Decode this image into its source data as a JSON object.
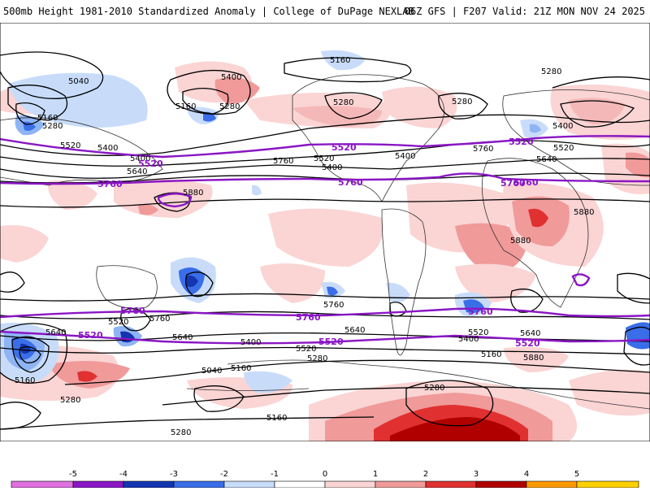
{
  "header": {
    "title": "500mb Height 1981-2010 Standardized Anomaly | College of DuPage NEXLAB",
    "run_info": "06Z GFS | F207 Valid: 21Z MON NOV 24 2025"
  },
  "contour_labels": [
    {
      "id": "l5160a",
      "text": "5160"
    },
    {
      "id": "l5040a",
      "text": "5040"
    },
    {
      "id": "l5400a",
      "text": "5400"
    },
    {
      "id": "l5160b",
      "text": "5160"
    },
    {
      "id": "l5280a",
      "text": "5280"
    },
    {
      "id": "l5160c",
      "text": "5160"
    },
    {
      "id": "l5280b",
      "text": "5280"
    },
    {
      "id": "l5400b",
      "text": "5400"
    },
    {
      "id": "l5280c",
      "text": "5280"
    },
    {
      "id": "l5280d",
      "text": "5280"
    },
    {
      "id": "l5280e",
      "text": "5280"
    },
    {
      "id": "l5400c",
      "text": "5400"
    },
    {
      "id": "l5520a",
      "text": "5520"
    },
    {
      "id": "l5400d",
      "text": "5400"
    },
    {
      "id": "l5640a",
      "text": "5640"
    },
    {
      "id": "l5760a",
      "text": "5760"
    },
    {
      "id": "l5520b",
      "text": "5520"
    },
    {
      "id": "l5520c",
      "text": "5520"
    },
    {
      "id": "l5400e",
      "text": "5400"
    },
    {
      "id": "l5760b",
      "text": "5760"
    },
    {
      "id": "l5400f",
      "text": "5400"
    },
    {
      "id": "l5640b",
      "text": "5640"
    },
    {
      "id": "l5880a",
      "text": "5880"
    },
    {
      "id": "l5880b",
      "text": "5880"
    },
    {
      "id": "l5880c",
      "text": "5880"
    },
    {
      "id": "l5520d",
      "text": "5520"
    },
    {
      "id": "l5760c",
      "text": "5760"
    },
    {
      "id": "l5640c",
      "text": "5640"
    },
    {
      "id": "l5640d",
      "text": "5640"
    },
    {
      "id": "l5400g",
      "text": "5400"
    },
    {
      "id": "l5520e",
      "text": "5520"
    },
    {
      "id": "l5280f",
      "text": "5280"
    },
    {
      "id": "l5160d",
      "text": "5160"
    },
    {
      "id": "l5040b",
      "text": "5040"
    },
    {
      "id": "l5160e",
      "text": "5160"
    },
    {
      "id": "l5280g",
      "text": "5280"
    },
    {
      "id": "l5160f",
      "text": "5160"
    },
    {
      "id": "l5280h",
      "text": "5280"
    },
    {
      "id": "l5760d",
      "text": "5760"
    },
    {
      "id": "l5640e",
      "text": "5640"
    },
    {
      "id": "l5400h",
      "text": "5400"
    },
    {
      "id": "l5520f",
      "text": "5520"
    },
    {
      "id": "l5640f",
      "text": "5640"
    },
    {
      "id": "l5280i",
      "text": "5280"
    },
    {
      "id": "l5160g",
      "text": "5160"
    },
    {
      "id": "l5880d",
      "text": "5880"
    }
  ],
  "highlight_labels": [
    {
      "id": "p5520a",
      "text": "5520"
    },
    {
      "id": "p5520b",
      "text": "5520"
    },
    {
      "id": "p5760a",
      "text": "5760"
    },
    {
      "id": "p5760b",
      "text": "5760"
    },
    {
      "id": "p5760c",
      "text": "5760"
    },
    {
      "id": "p5520c",
      "text": "5520"
    },
    {
      "id": "p5760d",
      "text": "5760"
    },
    {
      "id": "p5520d",
      "text": "5520"
    },
    {
      "id": "p5760e",
      "text": "5760"
    },
    {
      "id": "p5760f",
      "text": "5760"
    },
    {
      "id": "p5760g",
      "text": "5760"
    },
    {
      "id": "p5520e",
      "text": "5520"
    },
    {
      "id": "p5520f",
      "text": "5520"
    }
  ],
  "legend": {
    "ticks": [
      "-5",
      "-4",
      "-3",
      "-2",
      "-1",
      "0",
      "1",
      "2",
      "3",
      "4",
      "5"
    ],
    "colors": [
      "#e070e0",
      "#8a16c4",
      "#1535b0",
      "#3a6ee8",
      "#c8dcfa",
      "#ffffff",
      "#fbd4d4",
      "#f09a9a",
      "#e03030",
      "#b00000",
      "#ff9a00",
      "#ffd000"
    ]
  }
}
